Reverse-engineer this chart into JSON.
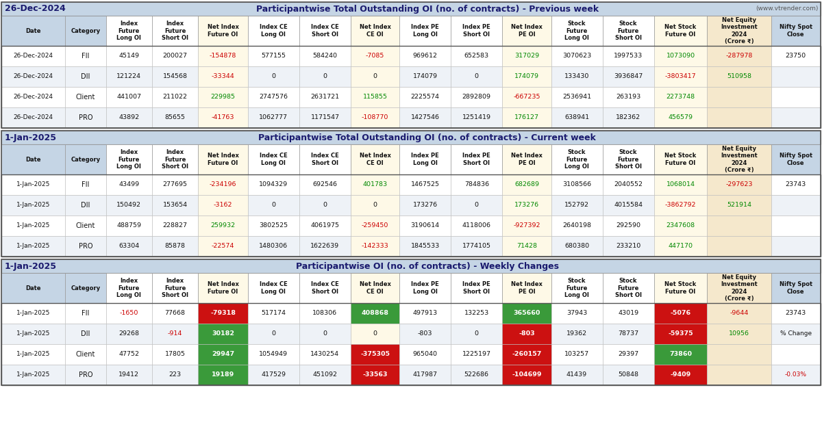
{
  "title1_date": "26-Dec-2024",
  "title1_main": "Participantwise Total Outstanding OI (no. of contracts) - Previous week",
  "title1_website": "(www.vtrender.com)",
  "title2_date": "1-Jan-2025",
  "title2_main": "Participantwise Total Outstanding OI (no. of contracts) - Current week",
  "title3_date": "1-Jan-2025",
  "title3_main": "Participantwise OI (no. of contracts) - Weekly Changes",
  "col_headers": [
    "Date",
    "Category",
    "Index\nFuture\nLong OI",
    "Index\nFuture\nShort OI",
    "Net Index\nFuture OI",
    "Index CE\nLong OI",
    "Index CE\nShort OI",
    "Net Index\nCE OI",
    "Index PE\nLong OI",
    "Index PE\nShort OI",
    "Net Index\nPE OI",
    "Stock\nFuture\nLong OI",
    "Stock\nFuture\nShort OI",
    "Net Stock\nFuture OI",
    "Net Equity\nInvestment\n2024\n(Crore ₹)",
    "Nifty Spot\nClose"
  ],
  "section1_rows": [
    [
      "26-Dec-2024",
      "FII",
      "45149",
      "200027",
      "-154878",
      "577155",
      "584240",
      "-7085",
      "969612",
      "652583",
      "317029",
      "3070623",
      "1997533",
      "1073090",
      "-287978",
      "23750"
    ],
    [
      "26-Dec-2024",
      "DII",
      "121224",
      "154568",
      "-33344",
      "0",
      "0",
      "0",
      "174079",
      "0",
      "174079",
      "133430",
      "3936847",
      "-3803417",
      "510958",
      ""
    ],
    [
      "26-Dec-2024",
      "Client",
      "441007",
      "211022",
      "229985",
      "2747576",
      "2631721",
      "115855",
      "2225574",
      "2892809",
      "-667235",
      "2536941",
      "263193",
      "2273748",
      "",
      ""
    ],
    [
      "26-Dec-2024",
      "PRO",
      "43892",
      "85655",
      "-41763",
      "1062777",
      "1171547",
      "-108770",
      "1427546",
      "1251419",
      "176127",
      "638941",
      "182362",
      "456579",
      "",
      ""
    ]
  ],
  "section2_rows": [
    [
      "1-Jan-2025",
      "FII",
      "43499",
      "277695",
      "-234196",
      "1094329",
      "692546",
      "401783",
      "1467525",
      "784836",
      "682689",
      "3108566",
      "2040552",
      "1068014",
      "-297623",
      "23743"
    ],
    [
      "1-Jan-2025",
      "DII",
      "150492",
      "153654",
      "-3162",
      "0",
      "0",
      "0",
      "173276",
      "0",
      "173276",
      "152792",
      "4015584",
      "-3862792",
      "521914",
      ""
    ],
    [
      "1-Jan-2025",
      "Client",
      "488759",
      "228827",
      "259932",
      "3802525",
      "4061975",
      "-259450",
      "3190614",
      "4118006",
      "-927392",
      "2640198",
      "292590",
      "2347608",
      "",
      ""
    ],
    [
      "1-Jan-2025",
      "PRO",
      "63304",
      "85878",
      "-22574",
      "1480306",
      "1622639",
      "-142333",
      "1845533",
      "1774105",
      "71428",
      "680380",
      "233210",
      "447170",
      "",
      ""
    ]
  ],
  "section3_rows": [
    [
      "1-Jan-2025",
      "FII",
      "-1650",
      "77668",
      "-79318",
      "517174",
      "108306",
      "408868",
      "497913",
      "132253",
      "365660",
      "37943",
      "43019",
      "-5076",
      "-9644",
      "23743"
    ],
    [
      "1-Jan-2025",
      "DII",
      "29268",
      "-914",
      "30182",
      "0",
      "0",
      "0",
      "-803",
      "0",
      "-803",
      "19362",
      "78737",
      "-59375",
      "10956",
      ""
    ],
    [
      "1-Jan-2025",
      "Client",
      "47752",
      "17805",
      "29947",
      "1054949",
      "1430254",
      "-375305",
      "965040",
      "1225197",
      "-260157",
      "103257",
      "29397",
      "73860",
      "",
      ""
    ],
    [
      "1-Jan-2025",
      "PRO",
      "19412",
      "223",
      "19189",
      "417529",
      "451092",
      "-33563",
      "417987",
      "522686",
      "-104699",
      "41439",
      "50848",
      "-9409",
      "",
      ""
    ]
  ],
  "pct_change": "-0.03%",
  "col_widths_raw": [
    72,
    46,
    52,
    52,
    56,
    58,
    58,
    55,
    58,
    58,
    55,
    58,
    58,
    60,
    72,
    56
  ],
  "bg_header": "#c5d5e5",
  "bg_yellow": "#fef9e7",
  "bg_peach": "#f5e8cc",
  "bg_white": "#ffffff",
  "bg_stripe": "#eef2f7",
  "color_pos": "#008800",
  "color_neg": "#cc0000",
  "color_cell_green": "#3a9a3a",
  "color_cell_red": "#cc1111",
  "color_black": "#111111",
  "color_navy": "#1a1a6e",
  "color_grey_text": "#555555"
}
